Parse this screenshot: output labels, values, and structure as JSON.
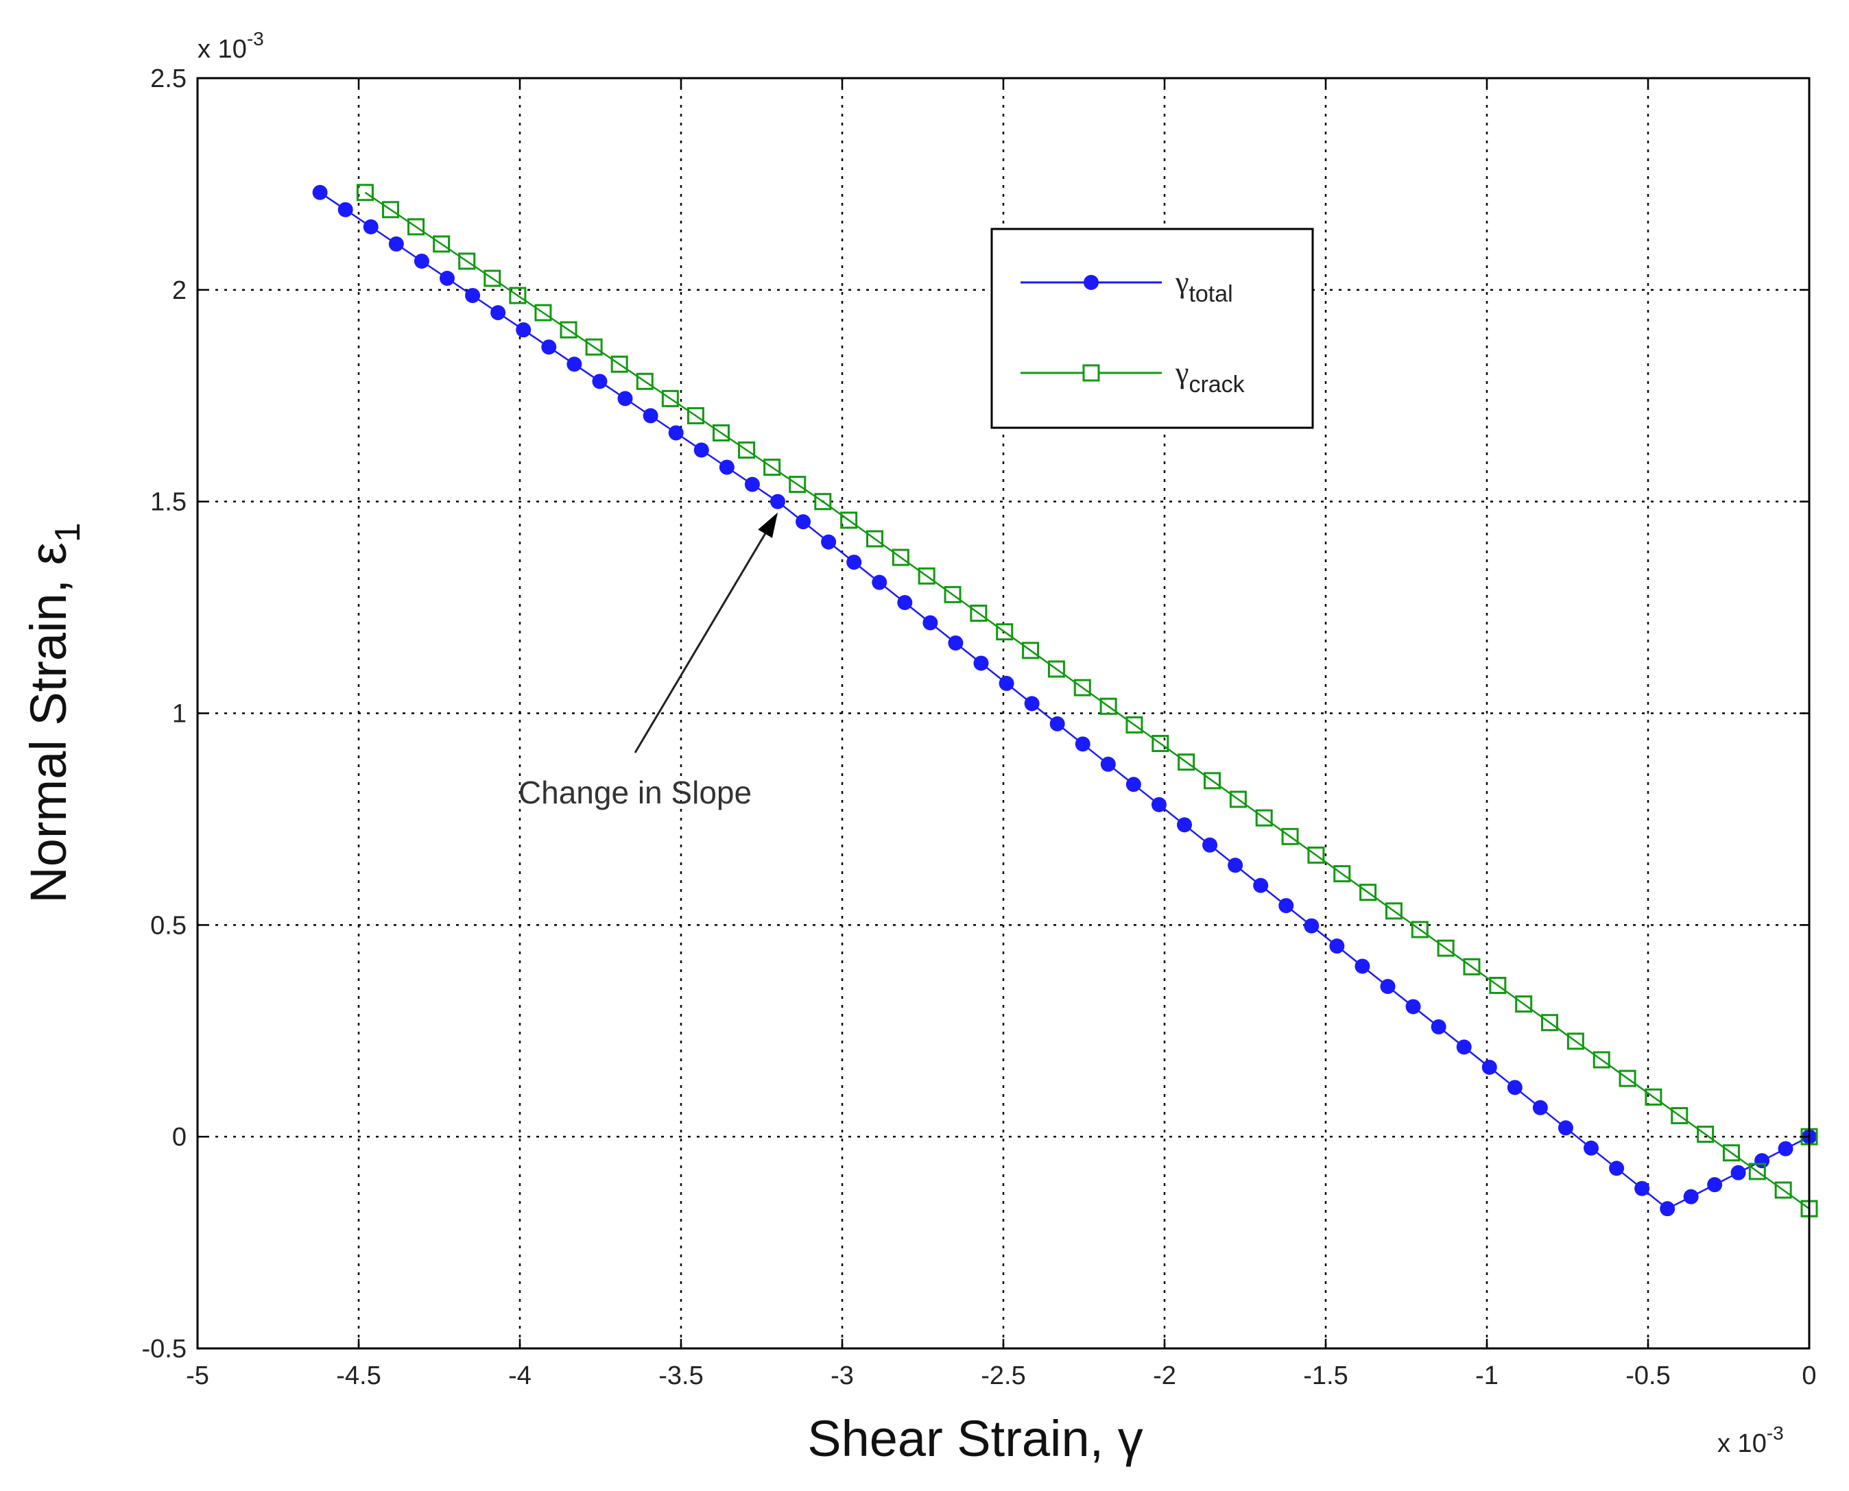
{
  "chart_data": {
    "type": "line",
    "xlabel": "Shear Strain, γ",
    "ylabel": "Normal Strain, ε1",
    "ylabel_main": "Normal Strain, ε",
    "ylabel_sub": "1",
    "x_multiplier": "x 10",
    "x_multiplier_exp": "-3",
    "y_multiplier": "x 10",
    "y_multiplier_exp": "-3",
    "xlim": [
      -5,
      0
    ],
    "ylim": [
      -0.5,
      2.5
    ],
    "x_ticks": [
      "-5",
      "-4.5",
      "-4",
      "-3.5",
      "-3",
      "-2.5",
      "-2",
      "-1.5",
      "-1",
      "-0.5",
      "0"
    ],
    "y_ticks": [
      "-0.5",
      "0",
      "0.5",
      "1",
      "1.5",
      "2",
      "2.5"
    ],
    "grid": true,
    "legend_position": "top-right",
    "series": [
      {
        "name": "γtotal",
        "name_main": "γ",
        "name_sub": "total",
        "color": "#1a1aff",
        "marker": "filled-circle",
        "segments": [
          {
            "x": [
              0,
              -0.44
            ],
            "y": [
              0,
              -0.17
            ]
          },
          {
            "x": [
              -0.44,
              -3.2
            ],
            "y": [
              -0.17,
              1.5
            ]
          },
          {
            "x": [
              -3.2,
              -4.62
            ],
            "y": [
              1.5,
              2.23
            ]
          }
        ]
      },
      {
        "name": "γcrack",
        "name_main": "γ",
        "name_sub": "crack",
        "color": "#119911",
        "marker": "open-square",
        "segments": [
          {
            "x": [
              0,
              0
            ],
            "y": [
              0,
              -0.17
            ]
          },
          {
            "x": [
              0,
              -3.06
            ],
            "y": [
              -0.17,
              1.5
            ]
          },
          {
            "x": [
              -3.06,
              -4.48
            ],
            "y": [
              1.5,
              2.23
            ]
          }
        ]
      }
    ],
    "annotations": [
      {
        "text": "Change in Slope",
        "target_x": -3.2,
        "target_y": 1.5
      }
    ]
  }
}
